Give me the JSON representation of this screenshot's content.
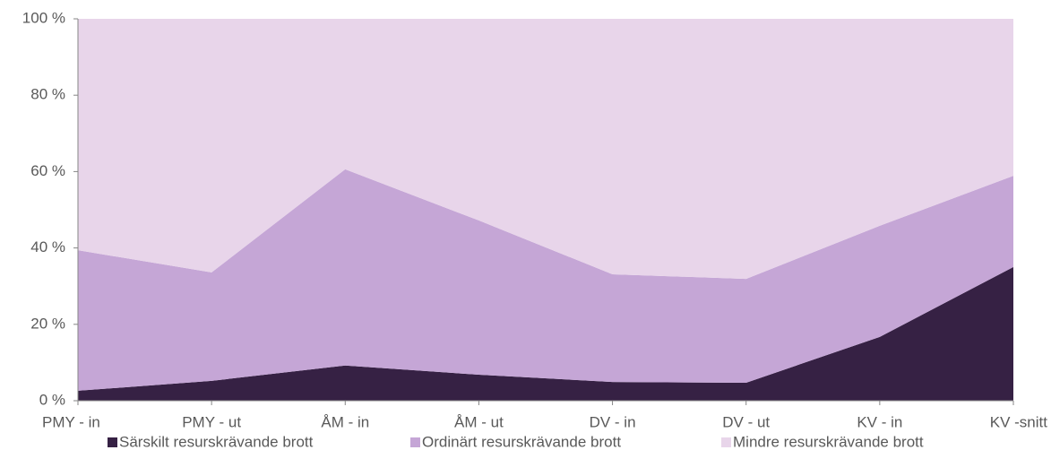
{
  "chart_data": {
    "type": "stacked_area",
    "categories": [
      "PMY - in",
      "PMY - ut",
      "ÅM - in",
      "ÅM - ut",
      "DV - in",
      "DV - ut",
      "KV - in",
      "KV -snitt"
    ],
    "series": [
      {
        "name": "Särskilt resurskrävande brott",
        "color": "#362144",
        "values": [
          2.6,
          5.2,
          9.2,
          6.8,
          4.9,
          4.7,
          16.7,
          35
        ]
      },
      {
        "name": "Ordinärt resurskrävande brott",
        "color": "#c5a6d6",
        "values": [
          36.8,
          28.4,
          51.4,
          40.4,
          28.2,
          27.2,
          29.1,
          23.9
        ]
      },
      {
        "name": "Mindre resurskrävande brott",
        "color": "#e8d5ea",
        "values": [
          60.6,
          66.4,
          39.4,
          52.8,
          66.9,
          68.1,
          54.2,
          41.1
        ]
      }
    ],
    "ylim": [
      0,
      100
    ],
    "yticks": [
      {
        "value": 0,
        "label": "0 %"
      },
      {
        "value": 20,
        "label": "20 %"
      },
      {
        "value": 40,
        "label": "40 %"
      },
      {
        "value": 60,
        "label": "60 %"
      },
      {
        "value": 80,
        "label": "80 %"
      },
      {
        "value": 100,
        "label": "100 %"
      }
    ],
    "legend": "bottom"
  }
}
